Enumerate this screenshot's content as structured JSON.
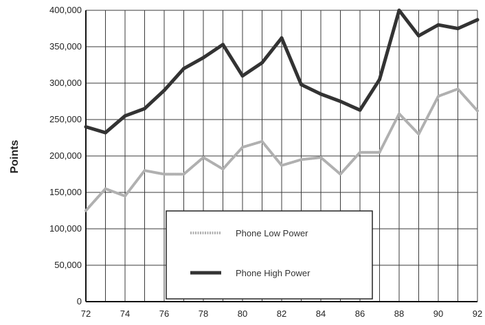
{
  "chart_data": {
    "type": "line",
    "title": "",
    "xlabel": "",
    "ylabel": "Points",
    "x": [
      72,
      73,
      74,
      75,
      76,
      77,
      78,
      79,
      80,
      81,
      82,
      83,
      84,
      85,
      86,
      87,
      88,
      89,
      90,
      91,
      92
    ],
    "x_tick_labels": [
      "72",
      "74",
      "76",
      "78",
      "80",
      "82",
      "84",
      "86",
      "88",
      "90",
      "92"
    ],
    "y_tick_labels": [
      "0",
      "50,000",
      "100,000",
      "150,000",
      "200,000",
      "250,000",
      "300,000",
      "350,000",
      "400,000"
    ],
    "xlim": [
      72,
      92
    ],
    "ylim": [
      0,
      400000
    ],
    "grid": true,
    "legend_position": "bottom-center",
    "series": [
      {
        "name": "Phone Low Power",
        "color": "#b0b0b0",
        "values": [
          125000,
          155000,
          145000,
          180000,
          175000,
          175000,
          198000,
          182000,
          212000,
          220000,
          187000,
          195000,
          198000,
          175000,
          205000,
          205000,
          258000,
          230000,
          282000,
          292000,
          262000
        ]
      },
      {
        "name": "Phone High Power",
        "color": "#333333",
        "values": [
          240000,
          232000,
          255000,
          265000,
          290000,
          320000,
          335000,
          353000,
          310000,
          328000,
          362000,
          298000,
          285000,
          275000,
          263000,
          305000,
          400000,
          365000,
          380000,
          375000,
          387000
        ]
      }
    ]
  }
}
